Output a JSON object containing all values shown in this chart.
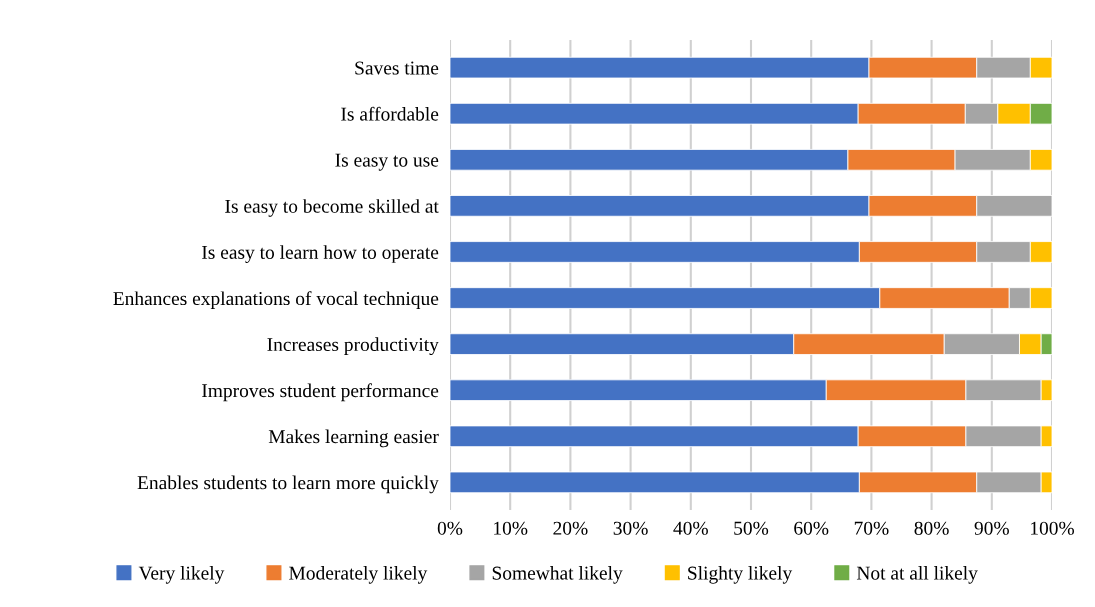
{
  "chart_data": {
    "type": "bar",
    "orientation": "horizontal",
    "stacked": true,
    "categories": [
      "Saves time",
      "Is affordable",
      "Is easy to use",
      "Is easy to become skilled at",
      "Is easy to learn how to operate",
      "Enhances explanations of vocal technique",
      "Increases productivity",
      "Improves student performance",
      "Makes learning easier",
      "Enables students to learn more quickly"
    ],
    "series": [
      {
        "name": "Very likely",
        "color": "#4472c4",
        "values": [
          69.6,
          67.8,
          66.1,
          69.6,
          68.0,
          71.4,
          57.1,
          62.5,
          67.8,
          68.0
        ]
      },
      {
        "name": "Moderately likely",
        "color": "#ed7d31",
        "values": [
          17.9,
          17.8,
          17.8,
          17.9,
          19.5,
          21.5,
          25.0,
          23.2,
          17.9,
          19.5
        ]
      },
      {
        "name": "Somewhat likely",
        "color": "#a5a5a5",
        "values": [
          8.9,
          5.4,
          12.5,
          12.5,
          8.9,
          3.5,
          12.5,
          12.5,
          12.5,
          10.7
        ]
      },
      {
        "name": "Slighty likely",
        "color": "#ffc000",
        "values": [
          3.6,
          5.4,
          3.6,
          null,
          3.6,
          3.6,
          3.6,
          1.8,
          1.8,
          1.8
        ]
      },
      {
        "name": "Not at all likely",
        "color": "#70ad47",
        "values": [
          null,
          3.6,
          null,
          null,
          null,
          null,
          1.8,
          null,
          null,
          null
        ]
      }
    ],
    "xlim": [
      0,
      100
    ],
    "xticks": [
      {
        "value": 0,
        "label": "0%"
      },
      {
        "value": 10,
        "label": "10%"
      },
      {
        "value": 20,
        "label": "20%"
      },
      {
        "value": 30,
        "label": "30%"
      },
      {
        "value": 40,
        "label": "40%"
      },
      {
        "value": 50,
        "label": "50%"
      },
      {
        "value": 60,
        "label": "60%"
      },
      {
        "value": 70,
        "label": "70%"
      },
      {
        "value": 80,
        "label": "80%"
      },
      {
        "value": 90,
        "label": "90%"
      },
      {
        "value": 100,
        "label": "100%"
      }
    ],
    "grid": "x",
    "legend": "bottom"
  }
}
